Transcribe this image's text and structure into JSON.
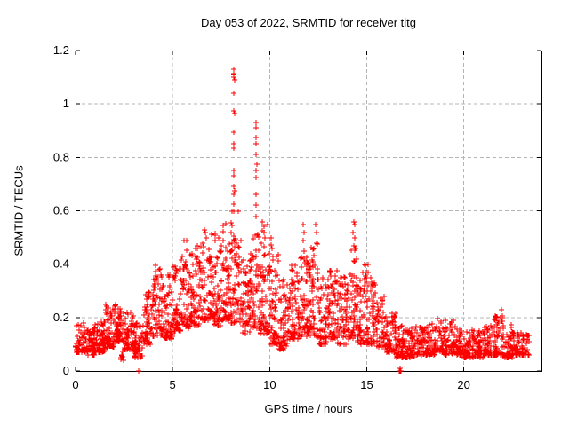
{
  "chart_data": {
    "type": "scatter",
    "title": "Day 053 of 2022, SRMTID for receiver titg",
    "xlabel": "GPS time / hours",
    "ylabel": "SRMTID / TECUs",
    "xlim": [
      0,
      24
    ],
    "ylim": [
      0,
      1.2
    ],
    "xticks": [
      0,
      5,
      10,
      15,
      20
    ],
    "xtick_labels": [
      "0",
      "5",
      "10",
      "15",
      "20"
    ],
    "yticks": [
      0,
      0.2,
      0.4,
      0.6,
      0.8,
      1,
      1.2
    ],
    "ytick_labels": [
      "0",
      "0.2",
      "0.4",
      "0.6",
      "0.8",
      "1",
      "1.2"
    ],
    "grid_x": [
      5,
      10,
      15,
      20
    ],
    "grid_y": [
      0.2,
      0.4,
      0.6,
      0.8,
      1.0
    ],
    "grid_on": true,
    "grid_color": "#b5b5b5",
    "legend": "none",
    "marker": "plus",
    "marker_color": "#ff0000",
    "background_color": "#ffffff",
    "border_color": "#000000",
    "seed": 20220053,
    "bin_format": [
      "t_start_hours",
      "t_end_hours",
      "y_min_TECUs",
      "y_max_TECUs",
      "point_count"
    ],
    "density_bins": [
      [
        0.0,
        0.5,
        0.07,
        0.18,
        60
      ],
      [
        0.5,
        1.0,
        0.06,
        0.16,
        60
      ],
      [
        1.0,
        1.5,
        0.07,
        0.19,
        60
      ],
      [
        1.5,
        2.0,
        0.09,
        0.25,
        60
      ],
      [
        2.0,
        2.5,
        0.11,
        0.27,
        60
      ],
      [
        2.35,
        2.55,
        0.04,
        0.08,
        8
      ],
      [
        2.5,
        3.0,
        0.08,
        0.22,
        55
      ],
      [
        3.0,
        3.5,
        0.05,
        0.18,
        55
      ],
      [
        3.5,
        4.0,
        0.1,
        0.3,
        60
      ],
      [
        4.0,
        4.5,
        0.13,
        0.4,
        60
      ],
      [
        4.5,
        5.0,
        0.12,
        0.36,
        60
      ],
      [
        5.0,
        5.5,
        0.15,
        0.43,
        60
      ],
      [
        5.5,
        6.0,
        0.16,
        0.5,
        62
      ],
      [
        6.0,
        6.5,
        0.17,
        0.48,
        62
      ],
      [
        6.5,
        7.0,
        0.19,
        0.53,
        62
      ],
      [
        7.0,
        7.5,
        0.17,
        0.52,
        62
      ],
      [
        7.5,
        8.0,
        0.19,
        0.56,
        62
      ],
      [
        8.0,
        8.5,
        0.18,
        0.6,
        65
      ],
      [
        8.5,
        9.0,
        0.14,
        0.42,
        55
      ],
      [
        9.0,
        9.5,
        0.16,
        0.52,
        60
      ],
      [
        9.5,
        10.0,
        0.14,
        0.55,
        65
      ],
      [
        10.0,
        10.5,
        0.1,
        0.48,
        62
      ],
      [
        10.5,
        11.0,
        0.08,
        0.35,
        60
      ],
      [
        11.0,
        11.5,
        0.12,
        0.42,
        60
      ],
      [
        11.5,
        12.0,
        0.13,
        0.45,
        60
      ],
      [
        12.0,
        12.5,
        0.13,
        0.5,
        60
      ],
      [
        12.5,
        13.0,
        0.1,
        0.35,
        58
      ],
      [
        13.0,
        13.5,
        0.12,
        0.38,
        58
      ],
      [
        13.5,
        14.0,
        0.1,
        0.36,
        58
      ],
      [
        14.0,
        14.5,
        0.12,
        0.46,
        60
      ],
      [
        14.5,
        15.0,
        0.1,
        0.4,
        58
      ],
      [
        15.0,
        15.5,
        0.1,
        0.35,
        58
      ],
      [
        15.5,
        16.0,
        0.09,
        0.28,
        55
      ],
      [
        16.0,
        16.5,
        0.07,
        0.22,
        52
      ],
      [
        16.5,
        17.0,
        0.05,
        0.17,
        50
      ],
      [
        17.0,
        17.5,
        0.05,
        0.16,
        50
      ],
      [
        17.5,
        18.0,
        0.06,
        0.17,
        50
      ],
      [
        18.0,
        18.5,
        0.06,
        0.18,
        50
      ],
      [
        18.5,
        19.0,
        0.07,
        0.2,
        50
      ],
      [
        19.0,
        19.5,
        0.06,
        0.19,
        50
      ],
      [
        19.5,
        20.0,
        0.06,
        0.17,
        50
      ],
      [
        20.0,
        20.5,
        0.05,
        0.16,
        50
      ],
      [
        20.5,
        21.0,
        0.05,
        0.15,
        50
      ],
      [
        21.0,
        21.5,
        0.06,
        0.17,
        50
      ],
      [
        21.5,
        22.0,
        0.06,
        0.21,
        52
      ],
      [
        22.0,
        22.5,
        0.05,
        0.18,
        50
      ],
      [
        22.5,
        23.0,
        0.06,
        0.15,
        50
      ],
      [
        23.0,
        23.4,
        0.06,
        0.14,
        35
      ]
    ],
    "peak_points": [
      [
        8.15,
        1.13
      ],
      [
        8.17,
        1.115
      ],
      [
        8.13,
        1.11
      ],
      [
        8.16,
        1.1
      ],
      [
        8.18,
        1.09
      ],
      [
        8.15,
        1.04
      ],
      [
        8.14,
        0.975
      ],
      [
        8.18,
        0.965
      ],
      [
        8.15,
        0.895
      ],
      [
        8.16,
        0.85
      ],
      [
        8.13,
        0.835
      ],
      [
        8.17,
        0.75
      ],
      [
        8.15,
        0.73
      ],
      [
        8.14,
        0.69
      ],
      [
        8.18,
        0.675
      ],
      [
        8.16,
        0.66
      ],
      [
        8.15,
        0.625
      ],
      [
        8.13,
        0.6
      ],
      [
        9.3,
        0.93
      ],
      [
        9.32,
        0.91
      ],
      [
        9.28,
        0.875
      ],
      [
        9.31,
        0.85
      ],
      [
        9.3,
        0.81
      ],
      [
        9.33,
        0.775
      ],
      [
        9.29,
        0.75
      ],
      [
        9.3,
        0.725
      ],
      [
        9.31,
        0.66
      ],
      [
        9.3,
        0.62
      ],
      [
        9.28,
        0.58
      ],
      [
        9.62,
        0.56
      ],
      [
        9.7,
        0.52
      ],
      [
        9.75,
        0.5
      ],
      [
        9.58,
        0.48
      ],
      [
        10.08,
        0.5
      ],
      [
        10.12,
        0.46
      ],
      [
        11.73,
        0.55
      ],
      [
        11.76,
        0.52
      ],
      [
        11.74,
        0.49
      ],
      [
        11.77,
        0.45
      ],
      [
        11.75,
        0.42
      ],
      [
        12.38,
        0.55
      ],
      [
        12.42,
        0.52
      ],
      [
        12.4,
        0.48
      ],
      [
        14.32,
        0.56
      ],
      [
        14.36,
        0.55
      ],
      [
        14.3,
        0.52
      ],
      [
        14.38,
        0.5
      ],
      [
        14.34,
        0.47
      ],
      [
        15.05,
        0.4
      ],
      [
        15.08,
        0.37
      ],
      [
        21.93,
        0.23
      ],
      [
        21.97,
        0.2
      ]
    ],
    "zero_points": [
      [
        3.25,
        0.0
      ],
      [
        16.66,
        0.0
      ],
      [
        16.7,
        0.0
      ],
      [
        16.73,
        0.0
      ],
      [
        16.76,
        0.0
      ],
      [
        16.7,
        0.01
      ]
    ]
  }
}
